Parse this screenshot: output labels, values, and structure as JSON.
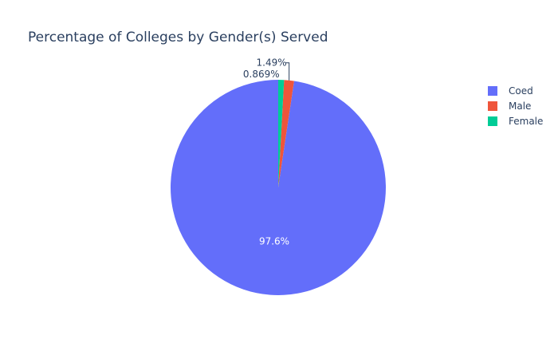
{
  "chart_data": {
    "type": "pie",
    "title": "Percentage of Colleges by Gender(s) Served",
    "slices": [
      {
        "name": "Coed",
        "percent": 97.6,
        "label": "97.6%",
        "color": "#636efa"
      },
      {
        "name": "Male",
        "percent": 1.49,
        "label": "1.49%",
        "color": "#ef553b"
      },
      {
        "name": "Female",
        "percent": 0.869,
        "label": "0.869%",
        "color": "#00cc96"
      }
    ],
    "legend_position": "top-right"
  }
}
